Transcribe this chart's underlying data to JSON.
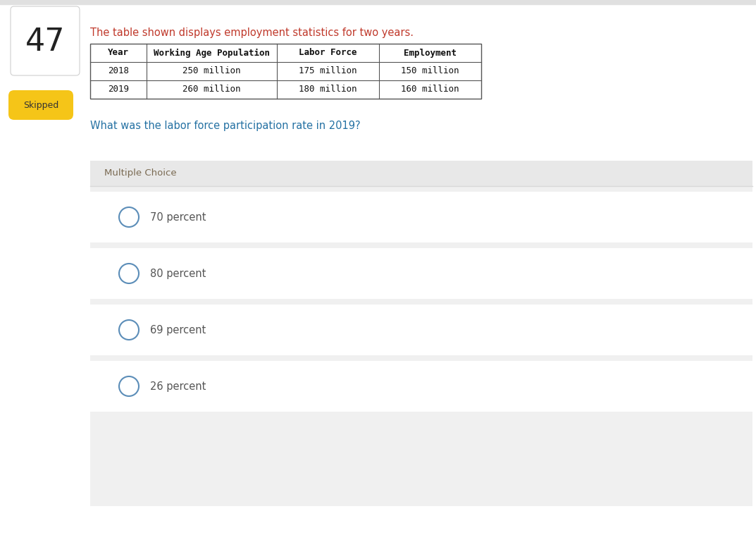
{
  "question_number": "47",
  "question_number_box_color": "#ffffff",
  "question_number_border_color": "#d0d0d0",
  "skipped_label": "Skipped",
  "skipped_bg_color": "#f5c518",
  "skipped_text_color": "#333333",
  "intro_text": "The table shown displays employment statistics for two years.",
  "intro_text_color": "#c0392b",
  "question_text": "What was the labor force participation rate in 2019?",
  "question_text_color": "#2471a3",
  "table_headers": [
    "Year",
    "Working Age Population",
    "Labor Force",
    "Employment"
  ],
  "table_data": [
    [
      "2018",
      "250 million",
      "175 million",
      "150 million"
    ],
    [
      "2019",
      "260 million",
      "180 million",
      "160 million"
    ]
  ],
  "table_border_color": "#555555",
  "multiple_choice_label": "Multiple Choice",
  "multiple_choice_label_color": "#7a6a52",
  "multiple_choice_bg": "#f0f0f0",
  "option_bg": "#ffffff",
  "option_separator_color": "#d8d8d8",
  "options": [
    "70 percent",
    "80 percent",
    "69 percent",
    "26 percent"
  ],
  "option_text_color": "#555555",
  "radio_border_color": "#5b8db8",
  "background_color": "#ffffff",
  "top_bar_color": "#e0e0e0"
}
